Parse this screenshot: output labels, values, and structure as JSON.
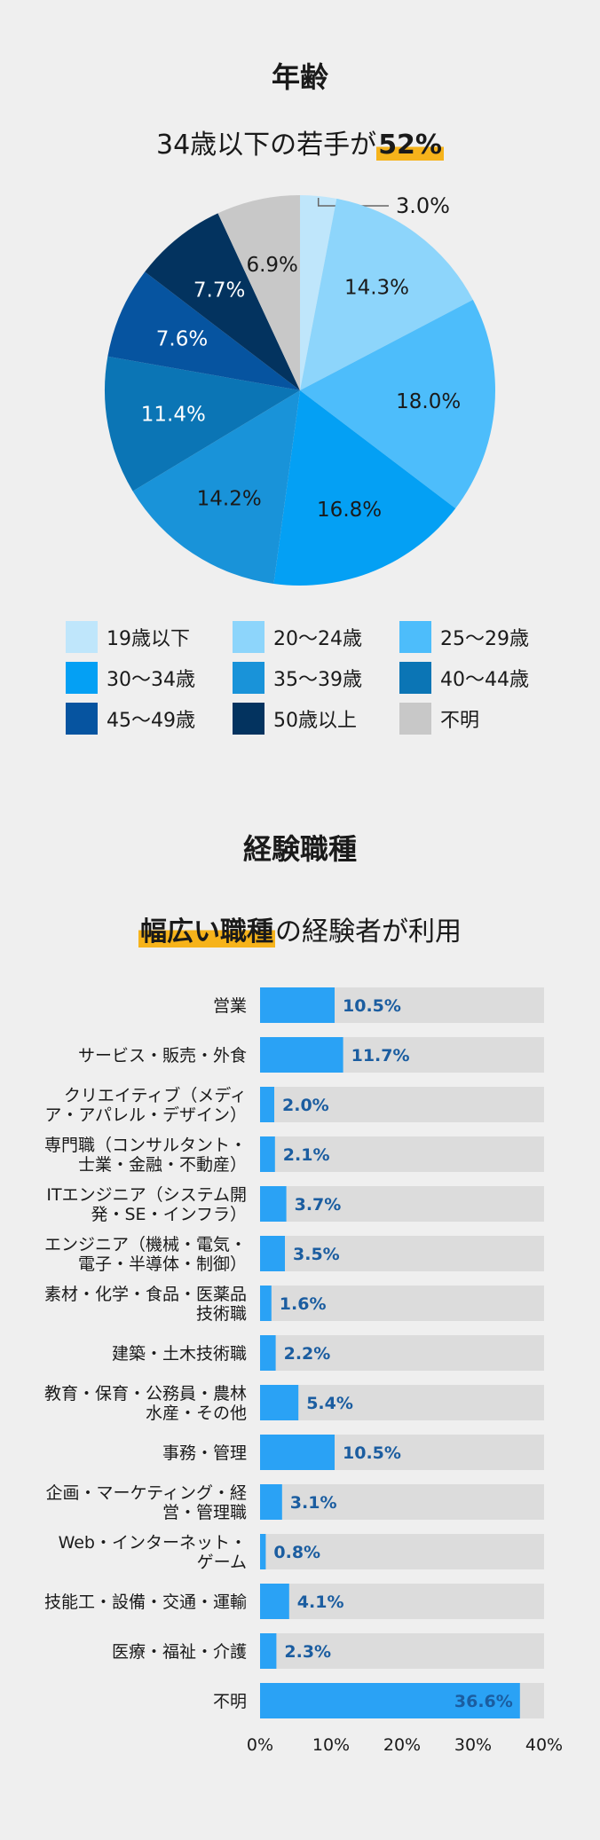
{
  "sections": {
    "age": {
      "title": "年齢",
      "headline_prefix": "34歳以下の若手が",
      "headline_highlight": "52%"
    },
    "job": {
      "title": "経験職種",
      "headline_highlight": "幅広い職種",
      "headline_suffix": "の経験者が利用"
    }
  },
  "chart_data": [
    {
      "type": "pie",
      "categories": [
        "19歳以下",
        "20〜24歳",
        "25〜29歳",
        "30〜34歳",
        "35〜39歳",
        "40〜44歳",
        "45〜49歳",
        "50歳以上",
        "不明"
      ],
      "values": [
        3.0,
        14.3,
        18.0,
        16.8,
        14.2,
        11.4,
        7.6,
        7.7,
        6.9
      ],
      "labels": [
        "3.0%",
        "14.3%",
        "18.0%",
        "16.8%",
        "14.2%",
        "11.4%",
        "7.6%",
        "7.7%",
        "6.9%"
      ],
      "colors": [
        "#bfe6fb",
        "#8dd5fb",
        "#4dbdfb",
        "#04a0f4",
        "#1993d9",
        "#0b75b5",
        "#0654a0",
        "#03335f",
        "#c8c8c8"
      ],
      "label_text_colors": [
        "#1a1a1a",
        "#1a1a1a",
        "#1a1a1a",
        "#1a1a1a",
        "#1a1a1a",
        "#ffffff",
        "#ffffff",
        "#ffffff",
        "#1a1a1a"
      ],
      "legend_placement": "bottom"
    },
    {
      "type": "bar",
      "orientation": "horizontal",
      "categories": [
        "営業",
        "サービス・販売・外食",
        "クリエイティブ（メディ|ア・アパレル・デザイン）",
        "専門職（コンサルタント・|士業・金融・不動産）",
        "ITエンジニア（システム開|発・SE・インフラ）",
        "エンジニア（機械・電気・|電子・半導体・制御）",
        "素材・化学・食品・医薬品|技術職",
        "建築・土木技術職",
        "教育・保育・公務員・農林|水産・その他",
        "事務・管理",
        "企画・マーケティング・経|営・管理職",
        "Web・インターネット・|ゲーム",
        "技能工・設備・交通・運輸",
        "医療・福祉・介護",
        "不明"
      ],
      "values": [
        10.5,
        11.7,
        2.0,
        2.1,
        3.7,
        3.5,
        1.6,
        2.2,
        5.4,
        10.5,
        3.1,
        0.8,
        4.1,
        2.3,
        36.6
      ],
      "labels": [
        "10.5%",
        "11.7%",
        "2.0%",
        "2.1%",
        "3.7%",
        "3.5%",
        "1.6%",
        "2.2%",
        "5.4%",
        "10.5%",
        "3.1%",
        "0.8%",
        "4.1%",
        "2.3%",
        "36.6%"
      ],
      "xlim": [
        0,
        40
      ],
      "xticks": [
        "0%",
        "10%",
        "20%",
        "30%",
        "40%"
      ],
      "bar_color": "#2aa2f5",
      "track_color": "#dcdcdc",
      "value_label_color": "#1b5da0"
    }
  ]
}
